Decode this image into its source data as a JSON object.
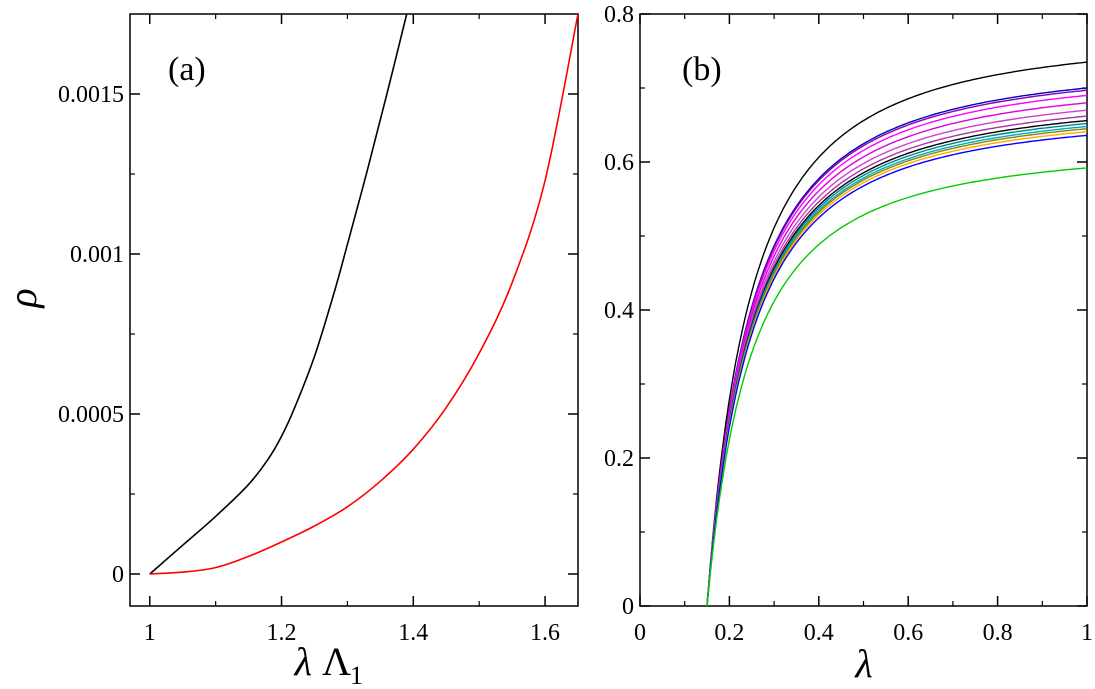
{
  "chart_data": [
    {
      "type": "line",
      "panel_label": "(a)",
      "ylabel": "ρ",
      "xlabel_symbol": "λ",
      "xlabel_main": "Λ",
      "xlabel_sub": "1",
      "xlim": [
        0.97,
        1.65
      ],
      "ylim": [
        -0.0001,
        0.00175
      ],
      "x_ticks": [
        1,
        1.2,
        1.4,
        1.6
      ],
      "x_tick_labels": [
        "1",
        "1.2",
        "1.4",
        "1.6"
      ],
      "y_ticks": [
        0,
        0.0005,
        0.001,
        0.0015
      ],
      "y_tick_labels": [
        "0",
        "0.0005",
        "0.001",
        "0.0015"
      ],
      "series": [
        {
          "name": "black",
          "color": "#000000",
          "x": [
            1.0,
            1.05,
            1.1,
            1.15,
            1.18,
            1.2,
            1.22,
            1.25,
            1.28,
            1.3,
            1.33,
            1.36,
            1.39
          ],
          "y": [
            0.0,
            9e-05,
            0.00018,
            0.00028,
            0.00036,
            0.00043,
            0.00052,
            0.00068,
            0.00088,
            0.00103,
            0.00126,
            0.0015,
            0.00175
          ]
        },
        {
          "name": "red",
          "color": "#ff0000",
          "x": [
            1.0,
            1.05,
            1.1,
            1.15,
            1.2,
            1.25,
            1.3,
            1.35,
            1.4,
            1.45,
            1.5,
            1.55,
            1.6,
            1.65
          ],
          "y": [
            0.0,
            6e-06,
            2e-05,
            5.5e-05,
            0.0001,
            0.00015,
            0.00021,
            0.00029,
            0.00039,
            0.00052,
            0.00069,
            0.00091,
            0.00123,
            0.00175
          ]
        }
      ]
    },
    {
      "type": "line",
      "panel_label": "(b)",
      "xlabel": "λ",
      "xlim": [
        0,
        1
      ],
      "ylim": [
        0,
        0.8
      ],
      "x_ticks": [
        0,
        0.2,
        0.4,
        0.6,
        0.8,
        1
      ],
      "x_tick_labels": [
        "0",
        "0.2",
        "0.4",
        "0.6",
        "0.8",
        "1"
      ],
      "y_ticks": [
        0,
        0.2,
        0.4,
        0.6,
        0.8
      ],
      "y_tick_labels": [
        "0",
        "0.2",
        "0.4",
        "0.6",
        "0.8"
      ],
      "threshold": 0.15,
      "series": [
        {
          "name": "black-top",
          "color": "#000000",
          "asymptote": 0.735
        },
        {
          "name": "blue-1",
          "color": "#0000cc",
          "asymptote": 0.7
        },
        {
          "name": "purple-1",
          "color": "#8800aa",
          "asymptote": 0.697
        },
        {
          "name": "magenta-1",
          "color": "#ff00ff",
          "asymptote": 0.69
        },
        {
          "name": "magenta-2",
          "color": "#dd00dd",
          "asymptote": 0.68
        },
        {
          "name": "magenta-3",
          "color": "#cc44cc",
          "asymptote": 0.67
        },
        {
          "name": "purple-2",
          "color": "#aa33aa",
          "asymptote": 0.662
        },
        {
          "name": "black-mid",
          "color": "#000000",
          "asymptote": 0.656
        },
        {
          "name": "teal",
          "color": "#008888",
          "asymptote": 0.652
        },
        {
          "name": "cyan",
          "color": "#00aacc",
          "asymptote": 0.648
        },
        {
          "name": "olive",
          "color": "#888800",
          "asymptote": 0.645
        },
        {
          "name": "orange",
          "color": "#ffaa00",
          "asymptote": 0.641
        },
        {
          "name": "blue-2",
          "color": "#0000ff",
          "asymptote": 0.636
        },
        {
          "name": "green",
          "color": "#00cc00",
          "asymptote": 0.592
        }
      ]
    }
  ]
}
